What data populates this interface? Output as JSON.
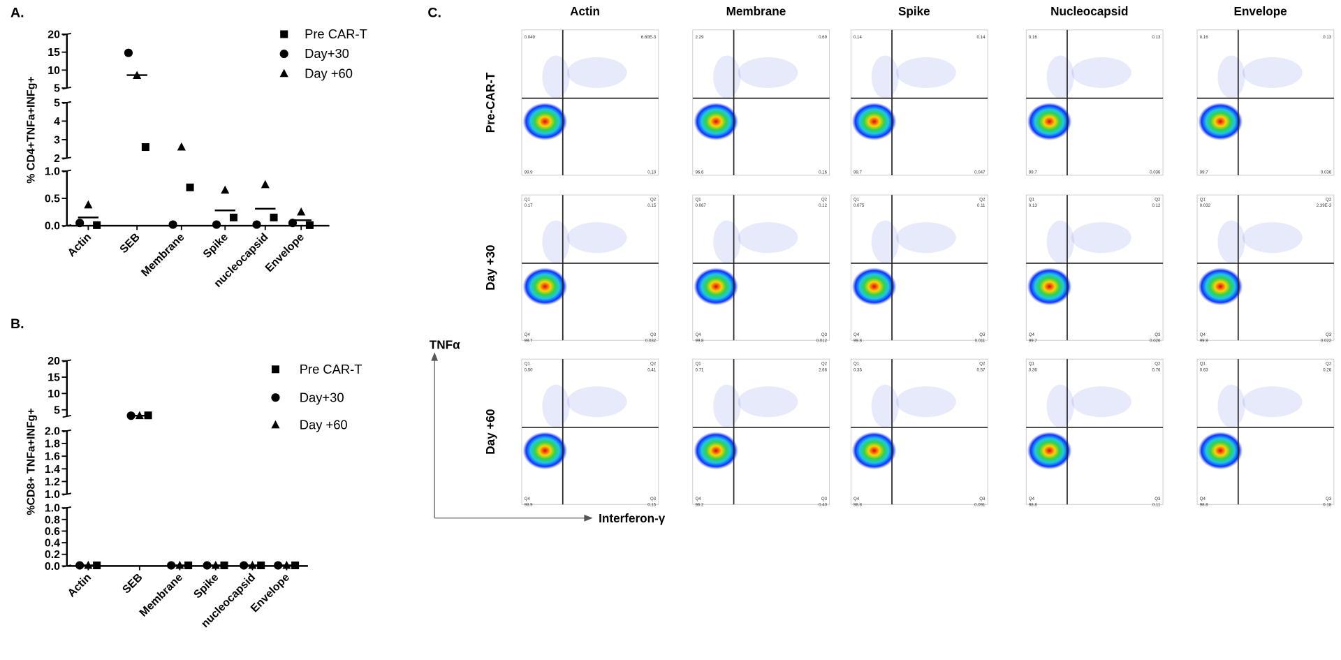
{
  "chart_data": [
    {
      "type": "dot_plot",
      "panel_label": "A.",
      "y_label": "% CD4+TNFa+INFg+",
      "categories": [
        "Actin",
        "SEB",
        "Membrane",
        "Spike",
        "nucleocapsid",
        "Envelope"
      ],
      "series": [
        {
          "name": "Pre CAR-T",
          "marker": "square",
          "color": "#000000",
          "values": [
            0.01,
            2.6,
            0.7,
            0.15,
            0.15,
            0.01
          ]
        },
        {
          "name": "Day+30",
          "marker": "circle",
          "color": "#000000",
          "values": [
            0.05,
            14.8,
            0.02,
            0.02,
            0.02,
            0.05
          ]
        },
        {
          "name": "Day +60",
          "marker": "triangle",
          "color": "#000000",
          "values": [
            0.38,
            8.5,
            2.6,
            0.65,
            0.75,
            0.25
          ]
        }
      ],
      "means": [
        0.15,
        8.6,
        null,
        0.28,
        0.31,
        0.1
      ],
      "segments": [
        {
          "ylim": [
            0,
            1
          ],
          "yticks": [
            {
              "value": 0,
              "label": "0.0"
            },
            {
              "value": 0.5,
              "label": "0.5"
            },
            {
              "value": 1,
              "label": "1.0"
            }
          ]
        },
        {
          "ylim": [
            2,
            5
          ],
          "yticks": [
            2,
            3,
            4,
            5
          ]
        },
        {
          "ylim": [
            5,
            20
          ],
          "yticks": [
            5,
            10,
            15,
            20
          ]
        }
      ]
    },
    {
      "type": "dot_plot",
      "panel_label": "B.",
      "y_label": "%CD8+ TNFa+INFg+",
      "categories": [
        "Actin",
        "SEB",
        "Membrane",
        "Spike",
        "nucleocapsid",
        "Envelope"
      ],
      "series": [
        {
          "name": "Pre CAR-T",
          "marker": "square",
          "color": "#000000",
          "values": [
            0.01,
            3.3,
            0.01,
            0.01,
            0.01,
            0.01
          ]
        },
        {
          "name": "Day+30",
          "marker": "circle",
          "color": "#000000",
          "values": [
            0.01,
            3.2,
            0.01,
            0.01,
            0.01,
            0.01
          ]
        },
        {
          "name": "Day +60",
          "marker": "triangle",
          "color": "#000000",
          "values": [
            0.01,
            3.2,
            0.01,
            0.01,
            0.01,
            0.01
          ]
        }
      ],
      "means": [
        0.01,
        3.2,
        0.01,
        0.01,
        0.01,
        0.01
      ],
      "segments": [
        {
          "ylim": [
            0,
            1
          ],
          "yticks": [
            {
              "value": 0,
              "label": "0.0"
            },
            {
              "value": 0.2,
              "label": "0.2"
            },
            {
              "value": 0.4,
              "label": "0.4"
            },
            {
              "value": 0.6,
              "label": "0.6"
            },
            {
              "value": 0.8,
              "label": "0.8"
            },
            {
              "value": 1,
              "label": "1.0"
            }
          ]
        },
        {
          "ylim": [
            1,
            2
          ],
          "yticks": [
            {
              "value": 1,
              "label": "1.0"
            },
            {
              "value": 1.2,
              "label": "1.2"
            },
            {
              "value": 1.4,
              "label": "1.4"
            },
            {
              "value": 1.6,
              "label": "1.6"
            },
            {
              "value": 1.8,
              "label": "1.8"
            },
            {
              "value": 2,
              "label": "2.0"
            }
          ]
        },
        {
          "ylim": [
            3,
            20
          ],
          "yticks": [
            5,
            10,
            15,
            20
          ]
        }
      ]
    }
  ],
  "flow": {
    "panel_label": "C.",
    "x_label": "Interferon-γ",
    "y_label": "TNFα",
    "columns": [
      "Actin",
      "Membrane",
      "Spike",
      "Nucleocapsid",
      "Envelope"
    ],
    "gate_names": [
      "Q1",
      "Q2",
      "Q3",
      "Q4"
    ],
    "rows": [
      {
        "label": "Pre-CAR-T",
        "show_gate_names": false,
        "plots": [
          [
            "0.049",
            "6.60E-3",
            "0.10",
            "99.9"
          ],
          [
            "2.29",
            "0.69",
            "0.16",
            "96.6"
          ],
          [
            "0.14",
            "0.14",
            "0.047",
            "99.7"
          ],
          [
            "0.16",
            "0.13",
            "0.036",
            "99.7"
          ],
          [
            "0.16",
            "0.13",
            "0.036",
            "99.7"
          ]
        ]
      },
      {
        "label": "Day +30",
        "show_gate_names": true,
        "plots": [
          [
            "0.17",
            "0.15",
            "0.032",
            "99.7"
          ],
          [
            "0.067",
            "0.12",
            "0.012",
            "99.8"
          ],
          [
            "0.075",
            "0.11",
            "0.011",
            "99.8"
          ],
          [
            "0.13",
            "0.12",
            "0.026",
            "99.7"
          ],
          [
            "0.032",
            "2.39E-3",
            "0.022",
            "99.9"
          ]
        ]
      },
      {
        "label": "Day +60",
        "show_gate_names": true,
        "plots": [
          [
            "0.50",
            "0.41",
            "0.15",
            "98.9"
          ],
          [
            "0.71",
            "2.66",
            "0.40",
            "96.2"
          ],
          [
            "0.35",
            "0.57",
            "0.091",
            "98.8"
          ],
          [
            "0.36",
            "0.76",
            "0.11",
            "98.8"
          ],
          [
            "0.63",
            "0.26",
            "0.18",
            "98.8"
          ]
        ]
      }
    ]
  }
}
